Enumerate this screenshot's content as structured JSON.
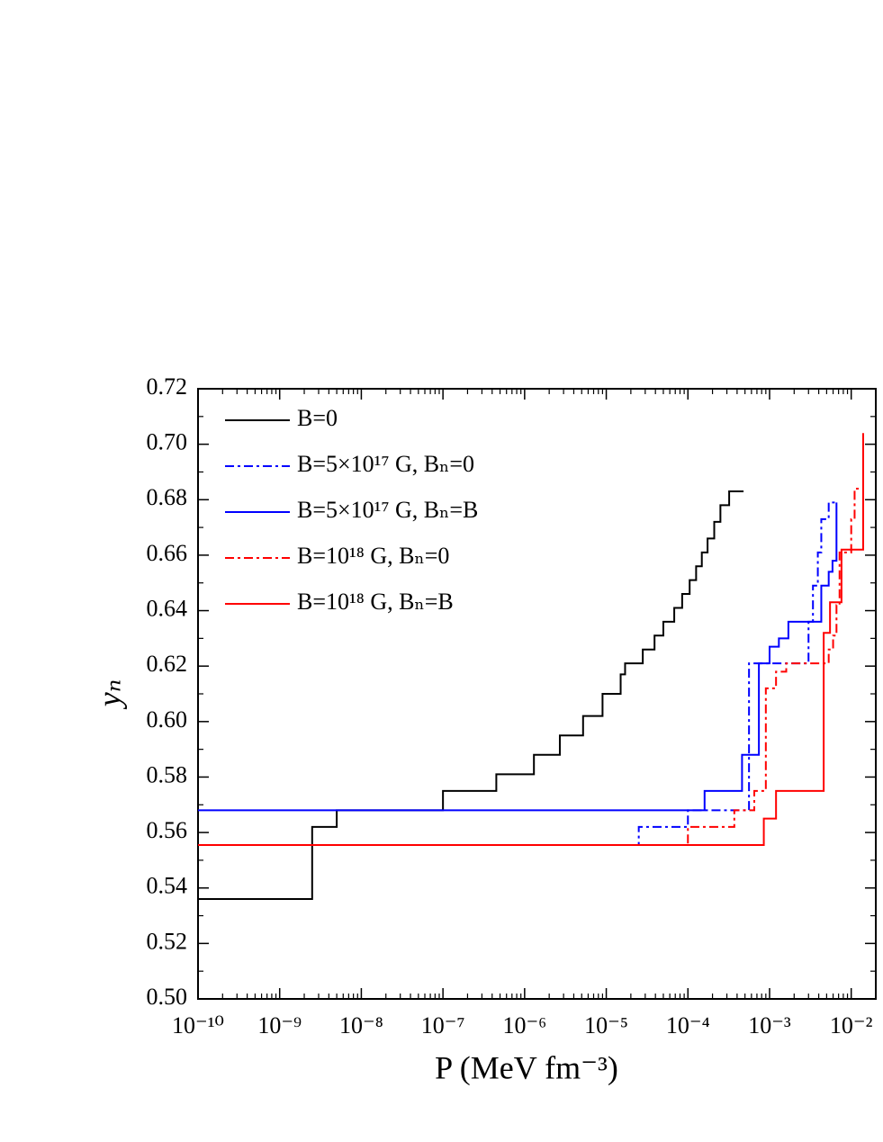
{
  "chart_data": {
    "type": "step",
    "xlabel": "P (MeV fm⁻³)",
    "ylabel": "yₙ",
    "xscale": "log",
    "xlim": [
      1e-10,
      0.02
    ],
    "ylim": [
      0.5,
      0.72
    ],
    "xticks": [
      {
        "value": 1e-10,
        "label": "10⁻¹⁰"
      },
      {
        "value": 1e-09,
        "label": "10⁻⁹"
      },
      {
        "value": 1e-08,
        "label": "10⁻⁸"
      },
      {
        "value": 1e-07,
        "label": "10⁻⁷"
      },
      {
        "value": 1e-06,
        "label": "10⁻⁶"
      },
      {
        "value": 1e-05,
        "label": "10⁻⁵"
      },
      {
        "value": 0.0001,
        "label": "10⁻⁴"
      },
      {
        "value": 0.001,
        "label": "10⁻³"
      },
      {
        "value": 0.01,
        "label": "10⁻²"
      }
    ],
    "yticks": [
      {
        "value": 0.5,
        "label": "0.50"
      },
      {
        "value": 0.52,
        "label": "0.52"
      },
      {
        "value": 0.54,
        "label": "0.54"
      },
      {
        "value": 0.56,
        "label": "0.56"
      },
      {
        "value": 0.58,
        "label": "0.58"
      },
      {
        "value": 0.6,
        "label": "0.60"
      },
      {
        "value": 0.62,
        "label": "0.62"
      },
      {
        "value": 0.64,
        "label": "0.64"
      },
      {
        "value": 0.66,
        "label": "0.66"
      },
      {
        "value": 0.68,
        "label": "0.68"
      },
      {
        "value": 0.7,
        "label": "0.70"
      },
      {
        "value": 0.72,
        "label": "0.72"
      }
    ],
    "grid": false,
    "legend": "upper left",
    "series": [
      {
        "name": "B=0",
        "color": "#000000",
        "dash": "solid",
        "x": [
          1e-10,
          2.5e-09,
          5e-09,
          1e-07,
          4.5e-07,
          1.3e-06,
          2.7e-06,
          5.2e-06,
          9e-06,
          1.5e-05,
          1.7e-05,
          2.8e-05,
          3.9e-05,
          5e-05,
          6.8e-05,
          8.5e-05,
          0.000105,
          0.000126,
          0.000148,
          0.000174,
          0.00021,
          0.00025,
          0.00032,
          0.00048
        ],
        "values": [
          0.536,
          0.562,
          0.568,
          0.575,
          0.581,
          0.588,
          0.595,
          0.602,
          0.61,
          0.617,
          0.621,
          0.626,
          0.631,
          0.636,
          0.641,
          0.646,
          0.651,
          0.656,
          0.661,
          0.666,
          0.672,
          0.678,
          0.683,
          0.683
        ]
      },
      {
        "name": "B=5×10¹⁷ G, Bₙ=0",
        "color": "#0000ff",
        "dash": "dashdot",
        "x": [
          1e-10,
          2.5e-05,
          0.0001,
          0.00056,
          0.003,
          0.0034,
          0.0039,
          0.0043,
          0.0053,
          0.0065
        ],
        "values": [
          0.5555,
          0.562,
          0.568,
          0.621,
          0.636,
          0.649,
          0.661,
          0.673,
          0.679,
          0.679
        ]
      },
      {
        "name": "B=5×10¹⁷ G, Bₙ=B",
        "color": "#0000ff",
        "dash": "solid",
        "x": [
          1e-10,
          0.00016,
          0.00046,
          0.00074,
          0.001,
          0.0013,
          0.0017,
          0.0043,
          0.0053,
          0.0059,
          0.0066
        ],
        "values": [
          0.568,
          0.575,
          0.588,
          0.621,
          0.627,
          0.63,
          0.636,
          0.649,
          0.654,
          0.658,
          0.679
        ]
      },
      {
        "name": "B=10¹⁸ G, Bₙ=0",
        "color": "#ff0000",
        "dash": "dashdot",
        "x": [
          1e-10,
          0.0001,
          0.00037,
          0.00065,
          0.0009,
          0.0012,
          0.0016,
          0.0053,
          0.006,
          0.0066,
          0.0072,
          0.01,
          0.011,
          0.0125
        ],
        "values": [
          0.5555,
          0.562,
          0.568,
          0.575,
          0.612,
          0.618,
          0.621,
          0.626,
          0.631,
          0.642,
          0.661,
          0.673,
          0.684,
          0.684
        ]
      },
      {
        "name": "B=10¹⁸ G, Bₙ=B",
        "color": "#ff0000",
        "dash": "solid",
        "x": [
          1e-10,
          0.00085,
          0.0012,
          0.0046,
          0.0055,
          0.0076,
          0.014
        ],
        "values": [
          0.5555,
          0.565,
          0.575,
          0.632,
          0.643,
          0.662,
          0.704
        ]
      }
    ]
  }
}
